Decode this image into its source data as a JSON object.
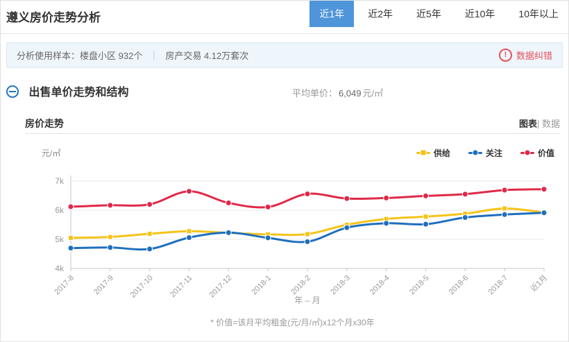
{
  "page_title": "遵义房价走势分析",
  "tabs": [
    {
      "label": "近1年",
      "active": true
    },
    {
      "label": "近2年",
      "active": false
    },
    {
      "label": "近5年",
      "active": false
    },
    {
      "label": "近10年",
      "active": false
    },
    {
      "label": "10年以上",
      "active": false
    }
  ],
  "info_bar": {
    "label": "分析使用样本：",
    "sample_buildings": "楼盘小区 932个",
    "divider": "｜",
    "sample_trades": "房产交易 4.12万套次",
    "correction": "数据纠错"
  },
  "section": {
    "title": "出售单价走势和结构",
    "avg_label": "平均单价：",
    "avg_value": "6,049",
    "avg_unit": "元/㎡"
  },
  "chart_card": {
    "title": "房价走势",
    "view_chart": "图表",
    "view_divider": "|",
    "view_data": "数据"
  },
  "chart_data": {
    "type": "line",
    "title": "房价走势",
    "x": [
      "2017-8",
      "2017-9",
      "2017-10",
      "2017-11",
      "2017-12",
      "2018-1",
      "2018-2",
      "2018-3",
      "2018-4",
      "2018-5",
      "2018-6",
      "2018-7",
      "近1月"
    ],
    "xlabel": "年 – 月",
    "ylabel": "元/㎡",
    "ylim": [
      4000,
      7000
    ],
    "yticks": [
      {
        "value": 4000,
        "label": "4k"
      },
      {
        "value": 5000,
        "label": "5k"
      },
      {
        "value": 6000,
        "label": "6k"
      },
      {
        "value": 7000,
        "label": "7k"
      }
    ],
    "grid": true,
    "smooth": true,
    "legend_position": "top-right",
    "series": [
      {
        "name": "供给",
        "color": "#F5C319",
        "marker": "square",
        "values": [
          5050,
          5080,
          5190,
          5280,
          5220,
          5170,
          5180,
          5500,
          5700,
          5780,
          5880,
          6060,
          5920
        ]
      },
      {
        "name": "关注",
        "color": "#1F6FBE",
        "marker": "circle",
        "values": [
          4700,
          4720,
          4670,
          5060,
          5230,
          5050,
          4920,
          5400,
          5550,
          5520,
          5750,
          5850,
          5910
        ]
      },
      {
        "name": "价值",
        "color": "#E02948",
        "marker": "circle",
        "values": [
          6120,
          6170,
          6200,
          6650,
          6250,
          6110,
          6560,
          6400,
          6420,
          6490,
          6550,
          6690,
          6720
        ]
      }
    ],
    "footnote": "* 价值=该月平均租金(元/月/㎡)x12个月x30年"
  },
  "colors": {
    "accent_blue": "#4E95D9",
    "icon_blue": "#2473C5",
    "alert_red": "#E8505B",
    "info_bg": "#EEF5FB",
    "grid_line": "#e8e8e8",
    "axis_line": "#c7c7c7",
    "axis_text": "#999999"
  }
}
